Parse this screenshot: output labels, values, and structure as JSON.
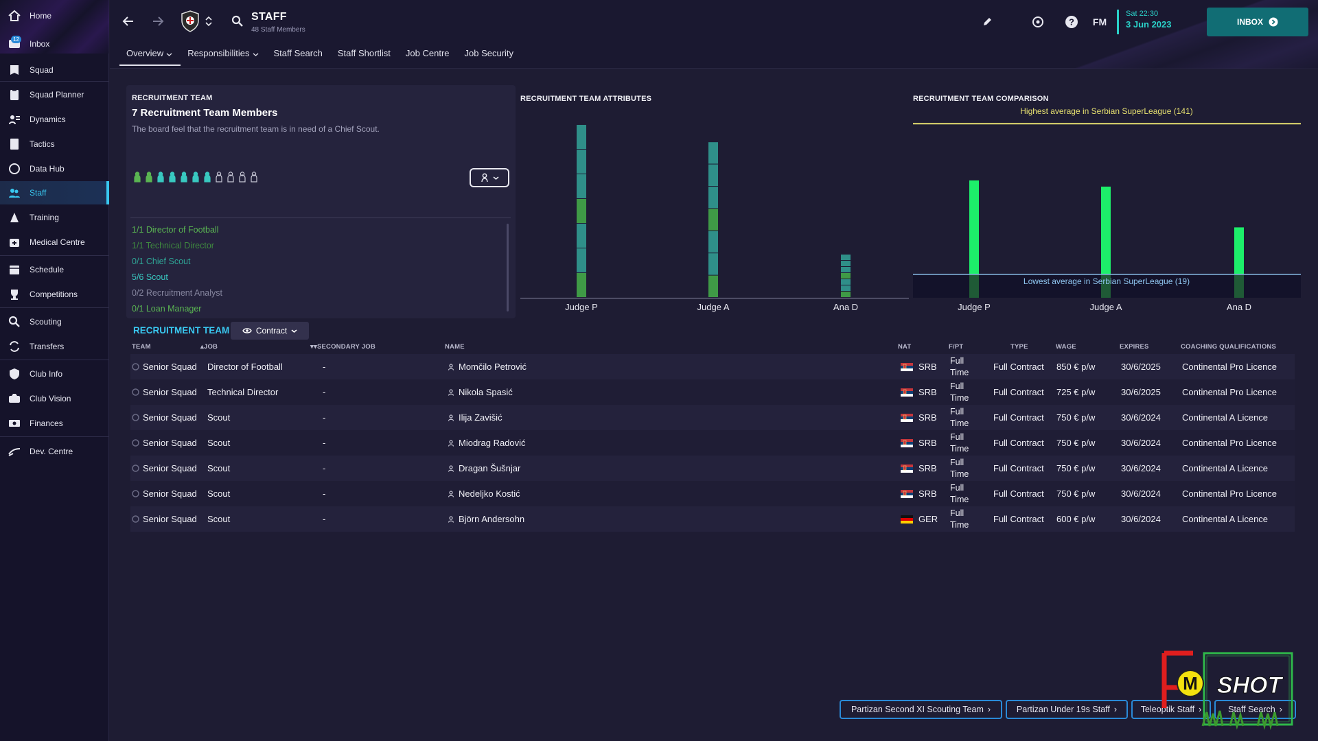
{
  "sidebar": {
    "items": [
      {
        "label": "Home",
        "icon": "home-icon"
      },
      {
        "label": "Inbox",
        "icon": "inbox-icon",
        "badge": "12"
      },
      {
        "label": "Squad",
        "icon": "squad-icon"
      },
      {
        "label": "Squad Planner",
        "icon": "clipboard-icon"
      },
      {
        "label": "Dynamics",
        "icon": "dynamics-icon"
      },
      {
        "label": "Tactics",
        "icon": "tactics-icon"
      },
      {
        "label": "Data Hub",
        "icon": "data-hub-icon"
      },
      {
        "label": "Staff",
        "icon": "staff-icon",
        "active": true
      },
      {
        "label": "Training",
        "icon": "training-icon"
      },
      {
        "label": "Medical Centre",
        "icon": "medical-icon"
      },
      {
        "label": "Schedule",
        "icon": "calendar-icon"
      },
      {
        "label": "Competitions",
        "icon": "trophy-icon"
      },
      {
        "label": "Scouting",
        "icon": "scouting-icon"
      },
      {
        "label": "Transfers",
        "icon": "transfers-icon"
      },
      {
        "label": "Club Info",
        "icon": "shield-icon"
      },
      {
        "label": "Club Vision",
        "icon": "club-vision-icon"
      },
      {
        "label": "Finances",
        "icon": "finances-icon"
      },
      {
        "label": "Dev. Centre",
        "icon": "dev-centre-icon"
      }
    ]
  },
  "header": {
    "title": "STAFF",
    "subtitle": "48 Staff Members",
    "tabs": [
      "Overview",
      "Responsibilities",
      "Staff Search",
      "Staff Shortlist",
      "Job Centre",
      "Job Security"
    ],
    "date_time": "Sat 22:30",
    "date_day": "3 Jun 2023",
    "fm_label": "FM",
    "inbox_label": "INBOX"
  },
  "recruitment": {
    "section_label": "RECRUITMENT TEAM",
    "count_label": "7 Recruitment Team Members",
    "note": "The board feel that the recruitment team is in need of a Chief Scout.",
    "filled": 7,
    "slots": 11,
    "roles": [
      {
        "text": "1/1 Director of Football",
        "color": "#5ab552"
      },
      {
        "text": "1/1 Technical Director",
        "color": "#3f8a3f"
      },
      {
        "text": "0/1 Chief Scout",
        "color": "#2fa596"
      },
      {
        "text": "5/6 Scout",
        "color": "#39c8c0"
      },
      {
        "text": "0/2 Recruitment Analyst",
        "color": "#85859e"
      },
      {
        "text": "0/1 Loan Manager",
        "color": "#5ab552"
      }
    ]
  },
  "attributes_chart": {
    "title": "RECRUITMENT TEAM ATTRIBUTES"
  },
  "comparison_chart": {
    "title": "RECRUITMENT TEAM COMPARISON",
    "highest_label": "Highest average in Serbian SuperLeague (141)",
    "lowest_label": "Lowest average in Serbian SuperLeague (19)"
  },
  "chart_data": [
    {
      "type": "bar",
      "title": "RECRUITMENT TEAM ATTRIBUTES",
      "categories": [
        "Judge P",
        "Judge A",
        "Ana D"
      ],
      "stack_colors": [
        "#3f9a46",
        "#2f8f89",
        "#2f8f89",
        "#3f9a46",
        "#2f8f89",
        "#2f8f89",
        "#2f8f89"
      ],
      "segments": [
        [
          20,
          20,
          20,
          20,
          20,
          20,
          20
        ],
        [
          18,
          18,
          18,
          18,
          18,
          18,
          18
        ],
        [
          5,
          5,
          5,
          5,
          5,
          5,
          5
        ]
      ],
      "ylim": [
        0,
        150
      ]
    },
    {
      "type": "bar",
      "title": "RECRUITMENT TEAM COMPARISON",
      "categories": [
        "Judge P",
        "Judge A",
        "Ana D"
      ],
      "values": [
        95,
        90,
        57
      ],
      "reference_lines": {
        "highest": 141,
        "lowest": 19
      },
      "bar_color": "#1dee6a",
      "ylim": [
        0,
        150
      ]
    }
  ],
  "table": {
    "title": "RECRUITMENT TEAM",
    "filter_label": "Contract",
    "columns": [
      "TEAM",
      "JOB",
      "SECONDARY JOB",
      "NAME",
      "NAT",
      "F/PT",
      "TYPE",
      "WAGE",
      "EXPIRES",
      "COACHING QUALIFICATIONS"
    ],
    "rows": [
      {
        "team": "Senior Squad",
        "job": "Director of Football",
        "secondary": "-",
        "name": "Momčilo Petrović",
        "nat": "SRB",
        "fpt1": "Full",
        "fpt2": "Time",
        "type": "Full Contract",
        "wage": "850 € p/w",
        "expires": "30/6/2025",
        "qual": "Continental Pro Licence"
      },
      {
        "team": "Senior Squad",
        "job": "Technical Director",
        "secondary": "-",
        "name": "Nikola Spasić",
        "nat": "SRB",
        "fpt1": "Full",
        "fpt2": "Time",
        "type": "Full Contract",
        "wage": "725 € p/w",
        "expires": "30/6/2025",
        "qual": "Continental Pro Licence"
      },
      {
        "team": "Senior Squad",
        "job": "Scout",
        "secondary": "-",
        "name": "Ilija Zavišić",
        "nat": "SRB",
        "fpt1": "Full",
        "fpt2": "Time",
        "type": "Full Contract",
        "wage": "750 € p/w",
        "expires": "30/6/2024",
        "qual": "Continental A Licence"
      },
      {
        "team": "Senior Squad",
        "job": "Scout",
        "secondary": "-",
        "name": "Miodrag Radović",
        "nat": "SRB",
        "fpt1": "Full",
        "fpt2": "Time",
        "type": "Full Contract",
        "wage": "750 € p/w",
        "expires": "30/6/2024",
        "qual": "Continental Pro Licence"
      },
      {
        "team": "Senior Squad",
        "job": "Scout",
        "secondary": "-",
        "name": "Dragan Šušnjar",
        "nat": "SRB",
        "fpt1": "Full",
        "fpt2": "Time",
        "type": "Full Contract",
        "wage": "750 € p/w",
        "expires": "30/6/2024",
        "qual": "Continental A Licence"
      },
      {
        "team": "Senior Squad",
        "job": "Scout",
        "secondary": "-",
        "name": "Nedeljko Kostić",
        "nat": "SRB",
        "fpt1": "Full",
        "fpt2": "Time",
        "type": "Full Contract",
        "wage": "750 € p/w",
        "expires": "30/6/2024",
        "qual": "Continental Pro Licence"
      },
      {
        "team": "Senior Squad",
        "job": "Scout",
        "secondary": "-",
        "name": "Björn Andersohn",
        "nat": "GER",
        "fpt1": "Full",
        "fpt2": "Time",
        "type": "Full Contract",
        "wage": "600 € p/w",
        "expires": "30/6/2024",
        "qual": "Continental A Licence"
      }
    ]
  },
  "bottom_buttons": [
    "Partizan Second XI Scouting Team",
    "Partizan Under 19s Staff",
    "Teleoptik Staff",
    "Staff Search"
  ],
  "logo": {
    "text_m": "M",
    "text_shot": "SHOT"
  }
}
